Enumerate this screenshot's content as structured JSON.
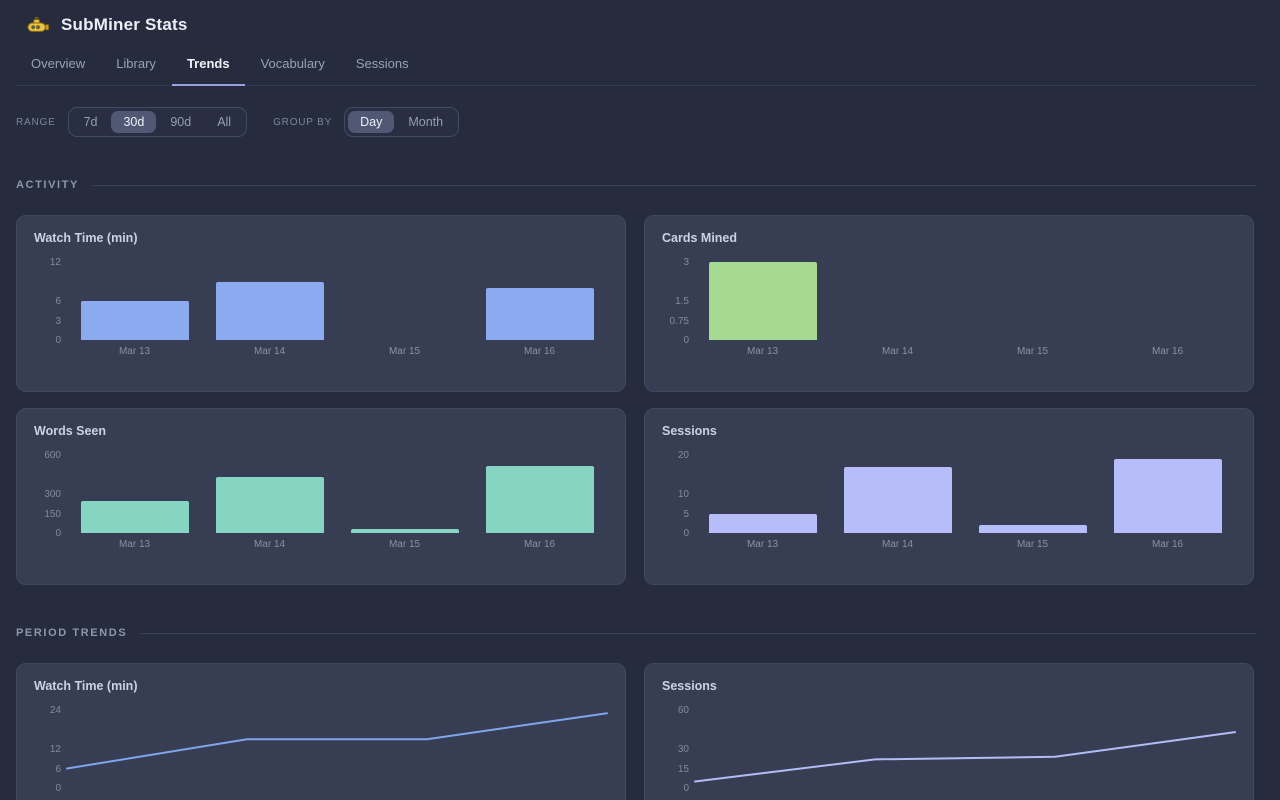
{
  "app": {
    "title": "SubMiner Stats",
    "logo": "submarine-icon"
  },
  "tabs": [
    {
      "label": "Overview",
      "active": false
    },
    {
      "label": "Library",
      "active": false
    },
    {
      "label": "Trends",
      "active": true
    },
    {
      "label": "Vocabulary",
      "active": false
    },
    {
      "label": "Sessions",
      "active": false
    }
  ],
  "filters": {
    "range": {
      "label": "RANGE",
      "options": [
        "7d",
        "30d",
        "90d",
        "All"
      ],
      "selected": "30d"
    },
    "group_by": {
      "label": "GROUP BY",
      "options": [
        "Day",
        "Month"
      ],
      "selected": "Day"
    }
  },
  "sections": {
    "activity": "ACTIVITY",
    "period_trends": "PERIOD TRENDS"
  },
  "chart_data": [
    {
      "section": "activity",
      "type": "bar",
      "title": "Watch Time (min)",
      "categories": [
        "Mar 13",
        "Mar 14",
        "Mar 15",
        "Mar 16"
      ],
      "values": [
        6,
        9,
        0,
        8
      ],
      "ylim": [
        0,
        12
      ],
      "yticks": [
        12,
        6,
        3,
        0
      ],
      "color": "#8caaf0",
      "show_x_labels": true,
      "grid": false,
      "legend": "none"
    },
    {
      "section": "activity",
      "type": "bar",
      "title": "Cards Mined",
      "categories": [
        "Mar 13",
        "Mar 14",
        "Mar 15",
        "Mar 16"
      ],
      "values": [
        3,
        0,
        0,
        0
      ],
      "ylim": [
        0,
        3
      ],
      "yticks": [
        3,
        1.5,
        0.75,
        0
      ],
      "color": "#a6da92",
      "show_x_labels": true,
      "grid": false,
      "legend": "none"
    },
    {
      "section": "activity",
      "type": "bar",
      "title": "Words Seen",
      "categories": [
        "Mar 13",
        "Mar 14",
        "Mar 15",
        "Mar 16"
      ],
      "values": [
        250,
        430,
        30,
        515
      ],
      "ylim": [
        0,
        600
      ],
      "yticks": [
        600,
        300,
        150,
        0
      ],
      "color": "#85d5c2",
      "show_x_labels": true,
      "grid": false,
      "legend": "none"
    },
    {
      "section": "activity",
      "type": "bar",
      "title": "Sessions",
      "categories": [
        "Mar 13",
        "Mar 14",
        "Mar 15",
        "Mar 16"
      ],
      "values": [
        5,
        17,
        2,
        19
      ],
      "ylim": [
        0,
        20
      ],
      "yticks": [
        20,
        10,
        5,
        0
      ],
      "color": "#b7bdf8",
      "show_x_labels": true,
      "grid": false,
      "legend": "none"
    },
    {
      "section": "period_trends",
      "type": "line",
      "title": "Watch Time (min)",
      "values": [
        6,
        15,
        15,
        23
      ],
      "ylim": [
        0,
        24
      ],
      "yticks": [
        24,
        12,
        6,
        0
      ],
      "color": "#7fa5ec",
      "show_x_labels": false,
      "grid": false,
      "legend": "none"
    },
    {
      "section": "period_trends",
      "type": "line",
      "title": "Sessions",
      "values": [
        5,
        22,
        24,
        43
      ],
      "ylim": [
        0,
        60
      ],
      "yticks": [
        60,
        30,
        15,
        0
      ],
      "color": "#b3bcf5",
      "show_x_labels": false,
      "grid": false,
      "legend": "none"
    }
  ],
  "colors": {
    "background": "#262b3e",
    "card": "#373d52",
    "accent_underline": "#98a1e2",
    "watch_bar": "#8caaf0",
    "cards_bar": "#a6da92",
    "words_bar": "#85d5c2",
    "sessions_bar": "#b7bdf8",
    "watch_line": "#7fa5ec",
    "sessions_line": "#b3bcf5"
  }
}
